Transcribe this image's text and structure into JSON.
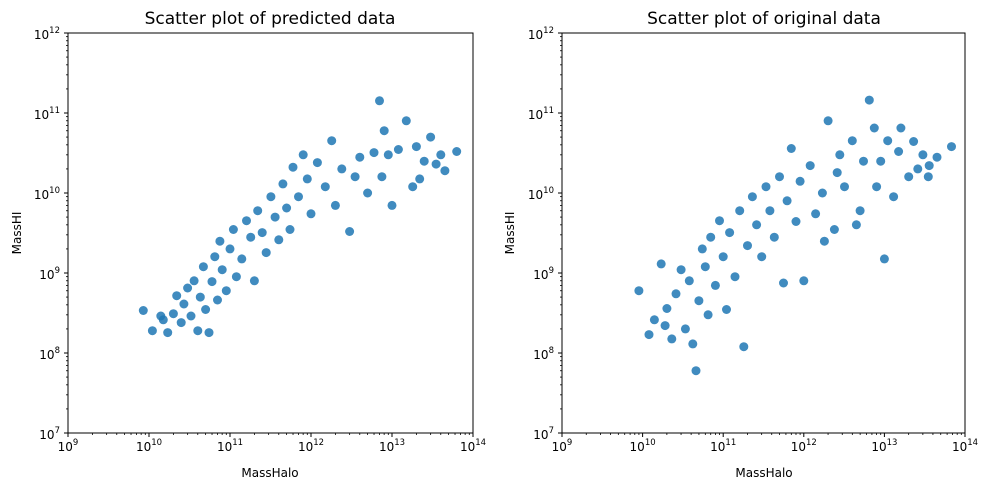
{
  "chart_data": [
    {
      "type": "scatter",
      "title": "Scatter plot of predicted data",
      "xlabel": "MassHalo",
      "ylabel": "MassHI",
      "xscale": "log",
      "yscale": "log",
      "xlim": [
        1000000000.0,
        100000000000000.0
      ],
      "ylim": [
        10000000.0,
        1000000000000.0
      ],
      "grid": false,
      "color": "#1f77b4",
      "xticks": [
        {
          "base": "10",
          "exp": "9"
        },
        {
          "base": "10",
          "exp": "10"
        },
        {
          "base": "10",
          "exp": "11"
        },
        {
          "base": "10",
          "exp": "12"
        },
        {
          "base": "10",
          "exp": "13"
        },
        {
          "base": "10",
          "exp": "14"
        }
      ],
      "yticks": [
        {
          "base": "10",
          "exp": "7"
        },
        {
          "base": "10",
          "exp": "8"
        },
        {
          "base": "10",
          "exp": "9"
        },
        {
          "base": "10",
          "exp": "10"
        },
        {
          "base": "10",
          "exp": "11"
        },
        {
          "base": "10",
          "exp": "12"
        }
      ],
      "points": [
        [
          8500000000.0,
          340000000.0
        ],
        [
          11000000000.0,
          190000000.0
        ],
        [
          14000000000.0,
          290000000.0
        ],
        [
          15000000000.0,
          260000000.0
        ],
        [
          17000000000.0,
          180000000.0
        ],
        [
          20000000000.0,
          310000000.0
        ],
        [
          22000000000.0,
          520000000.0
        ],
        [
          25000000000.0,
          240000000.0
        ],
        [
          27000000000.0,
          410000000.0
        ],
        [
          30000000000.0,
          650000000.0
        ],
        [
          33000000000.0,
          290000000.0
        ],
        [
          36000000000.0,
          800000000.0
        ],
        [
          40000000000.0,
          190000000.0
        ],
        [
          43000000000.0,
          500000000.0
        ],
        [
          47000000000.0,
          1200000000.0
        ],
        [
          50000000000.0,
          350000000.0
        ],
        [
          55000000000.0,
          180000000.0
        ],
        [
          60000000000.0,
          780000000.0
        ],
        [
          65000000000.0,
          1600000000.0
        ],
        [
          70000000000.0,
          460000000.0
        ],
        [
          75000000000.0,
          2500000000.0
        ],
        [
          80000000000.0,
          1100000000.0
        ],
        [
          90000000000.0,
          600000000.0
        ],
        [
          100000000000.0,
          2000000000.0
        ],
        [
          110000000000.0,
          3500000000.0
        ],
        [
          120000000000.0,
          900000000.0
        ],
        [
          140000000000.0,
          1500000000.0
        ],
        [
          160000000000.0,
          4500000000.0
        ],
        [
          180000000000.0,
          2800000000.0
        ],
        [
          200000000000.0,
          800000000.0
        ],
        [
          220000000000.0,
          6000000000.0
        ],
        [
          250000000000.0,
          3200000000.0
        ],
        [
          280000000000.0,
          1800000000.0
        ],
        [
          320000000000.0,
          9000000000.0
        ],
        [
          360000000000.0,
          5000000000.0
        ],
        [
          400000000000.0,
          2600000000.0
        ],
        [
          450000000000.0,
          13000000000.0
        ],
        [
          500000000000.0,
          6500000000.0
        ],
        [
          550000000000.0,
          3500000000.0
        ],
        [
          600000000000.0,
          21000000000.0
        ],
        [
          700000000000.0,
          9000000000.0
        ],
        [
          800000000000.0,
          30000000000.0
        ],
        [
          900000000000.0,
          15000000000.0
        ],
        [
          1000000000000.0,
          5500000000.0
        ],
        [
          1200000000000.0,
          24000000000.0
        ],
        [
          1500000000000.0,
          12000000000.0
        ],
        [
          1800000000000.0,
          45000000000.0
        ],
        [
          2000000000000.0,
          7000000000.0
        ],
        [
          2400000000000.0,
          20000000000.0
        ],
        [
          3000000000000.0,
          3300000000.0
        ],
        [
          3500000000000.0,
          16000000000.0
        ],
        [
          4000000000000.0,
          28000000000.0
        ],
        [
          5000000000000.0,
          10000000000.0
        ],
        [
          6000000000000.0,
          32000000000.0
        ],
        [
          7500000000000.0,
          16000000000.0
        ],
        [
          7000000000000.0,
          142000000000.0
        ],
        [
          8000000000000.0,
          60000000000.0
        ],
        [
          9000000000000.0,
          30000000000.0
        ],
        [
          10000000000000.0,
          7000000000.0
        ],
        [
          12000000000000.0,
          35000000000.0
        ],
        [
          15000000000000.0,
          80000000000.0
        ],
        [
          18000000000000.0,
          12000000000.0
        ],
        [
          20000000000000.0,
          38000000000.0
        ],
        [
          25000000000000.0,
          25000000000.0
        ],
        [
          30000000000000.0,
          50000000000.0
        ],
        [
          35000000000000.0,
          23000000000.0
        ],
        [
          40000000000000.0,
          30000000000.0
        ],
        [
          45000000000000.0,
          19000000000.0
        ],
        [
          63000000000000.0,
          33000000000.0
        ],
        [
          22000000000000.0,
          15000000000.0
        ]
      ]
    },
    {
      "type": "scatter",
      "title": "Scatter plot of original data",
      "xlabel": "MassHalo",
      "ylabel": "MassHI",
      "xscale": "log",
      "yscale": "log",
      "xlim": [
        1000000000.0,
        100000000000000.0
      ],
      "ylim": [
        10000000.0,
        1000000000000.0
      ],
      "grid": false,
      "color": "#1f77b4",
      "xticks": [
        {
          "base": "10",
          "exp": "9"
        },
        {
          "base": "10",
          "exp": "10"
        },
        {
          "base": "10",
          "exp": "11"
        },
        {
          "base": "10",
          "exp": "12"
        },
        {
          "base": "10",
          "exp": "13"
        },
        {
          "base": "10",
          "exp": "14"
        }
      ],
      "yticks": [
        {
          "base": "10",
          "exp": "7"
        },
        {
          "base": "10",
          "exp": "8"
        },
        {
          "base": "10",
          "exp": "9"
        },
        {
          "base": "10",
          "exp": "10"
        },
        {
          "base": "10",
          "exp": "11"
        },
        {
          "base": "10",
          "exp": "12"
        }
      ],
      "points": [
        [
          9000000000.0,
          600000000.0
        ],
        [
          12000000000.0,
          170000000.0
        ],
        [
          14000000000.0,
          260000000.0
        ],
        [
          17000000000.0,
          1300000000.0
        ],
        [
          19000000000.0,
          220000000.0
        ],
        [
          20000000000.0,
          360000000.0
        ],
        [
          23000000000.0,
          150000000.0
        ],
        [
          26000000000.0,
          550000000.0
        ],
        [
          30000000000.0,
          1100000000.0
        ],
        [
          34000000000.0,
          200000000.0
        ],
        [
          38000000000.0,
          800000000.0
        ],
        [
          42000000000.0,
          130000000.0
        ],
        [
          46000000000.0,
          60000000.0
        ],
        [
          50000000000.0,
          450000000.0
        ],
        [
          55000000000.0,
          2000000000.0
        ],
        [
          60000000000.0,
          1200000000.0
        ],
        [
          65000000000.0,
          300000000.0
        ],
        [
          70000000000.0,
          2800000000.0
        ],
        [
          80000000000.0,
          700000000.0
        ],
        [
          90000000000.0,
          4500000000.0
        ],
        [
          100000000000.0,
          1600000000.0
        ],
        [
          110000000000.0,
          350000000.0
        ],
        [
          120000000000.0,
          3200000000.0
        ],
        [
          140000000000.0,
          900000000.0
        ],
        [
          160000000000.0,
          6000000000.0
        ],
        [
          180000000000.0,
          120000000.0
        ],
        [
          200000000000.0,
          2200000000.0
        ],
        [
          230000000000.0,
          9000000000.0
        ],
        [
          260000000000.0,
          4000000000.0
        ],
        [
          300000000000.0,
          1600000000.0
        ],
        [
          340000000000.0,
          12000000000.0
        ],
        [
          380000000000.0,
          6000000000.0
        ],
        [
          430000000000.0,
          2800000000.0
        ],
        [
          500000000000.0,
          16000000000.0
        ],
        [
          560000000000.0,
          750000000.0
        ],
        [
          620000000000.0,
          8000000000.0
        ],
        [
          700000000000.0,
          36000000000.0
        ],
        [
          800000000000.0,
          4400000000.0
        ],
        [
          900000000000.0,
          14000000000.0
        ],
        [
          1000000000000.0,
          800000000.0
        ],
        [
          1200000000000.0,
          22000000000.0
        ],
        [
          1400000000000.0,
          5500000000.0
        ],
        [
          1700000000000.0,
          10000000000.0
        ],
        [
          2000000000000.0,
          80000000000.0
        ],
        [
          2400000000000.0,
          3500000000.0
        ],
        [
          2800000000000.0,
          30000000000.0
        ],
        [
          3200000000000.0,
          12000000000.0
        ],
        [
          4000000000000.0,
          45000000000.0
        ],
        [
          4500000000000.0,
          4000000000.0
        ],
        [
          5500000000000.0,
          25000000000.0
        ],
        [
          6500000000000.0,
          145000000000.0
        ],
        [
          7500000000000.0,
          65000000000.0
        ],
        [
          8000000000000.0,
          12000000000.0
        ],
        [
          9000000000000.0,
          25000000000.0
        ],
        [
          10000000000000.0,
          1500000000.0
        ],
        [
          11000000000000.0,
          45000000000.0
        ],
        [
          13000000000000.0,
          9000000000.0
        ],
        [
          16000000000000.0,
          65000000000.0
        ],
        [
          20000000000000.0,
          16000000000.0
        ],
        [
          23000000000000.0,
          44000000000.0
        ],
        [
          26000000000000.0,
          20000000000.0
        ],
        [
          30000000000000.0,
          30000000000.0
        ],
        [
          36000000000000.0,
          22000000000.0
        ],
        [
          45000000000000.0,
          28000000000.0
        ],
        [
          68000000000000.0,
          38000000000.0
        ],
        [
          2600000000000.0,
          18000000000.0
        ],
        [
          5000000000000.0,
          6000000000.0
        ],
        [
          15000000000000.0,
          33000000000.0
        ],
        [
          1800000000000.0,
          2500000000.0
        ],
        [
          35000000000000.0,
          16000000000.0
        ]
      ]
    }
  ]
}
